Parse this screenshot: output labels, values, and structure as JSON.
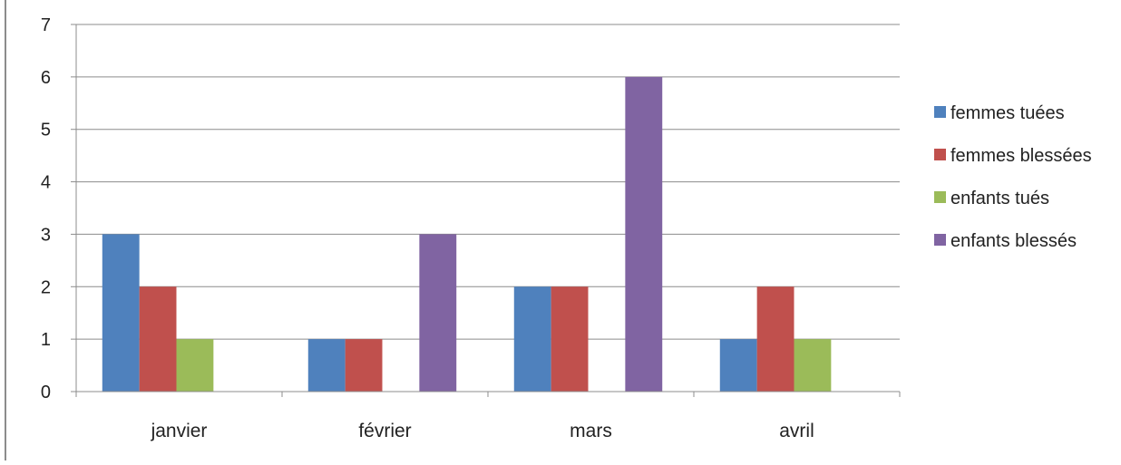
{
  "chart_data": {
    "type": "bar",
    "title": "",
    "xlabel": "",
    "ylabel": "",
    "categories": [
      "janvier",
      "février",
      "mars",
      "avril"
    ],
    "series": [
      {
        "name": "femmes tuées",
        "color": "#4f81bd",
        "values": [
          3,
          1,
          2,
          1
        ]
      },
      {
        "name": "femmes blessées",
        "color": "#c0504d",
        "values": [
          2,
          1,
          2,
          2
        ]
      },
      {
        "name": "enfants tués",
        "color": "#9bbb59",
        "values": [
          1,
          0,
          0,
          1
        ]
      },
      {
        "name": "enfants blessés",
        "color": "#8064a2",
        "values": [
          0,
          3,
          6,
          0
        ]
      }
    ],
    "ylim": [
      0,
      7
    ],
    "yticks": [
      "0",
      "1",
      "2",
      "3",
      "4",
      "5",
      "6",
      "7"
    ],
    "grid": true,
    "legend_position": "right"
  }
}
